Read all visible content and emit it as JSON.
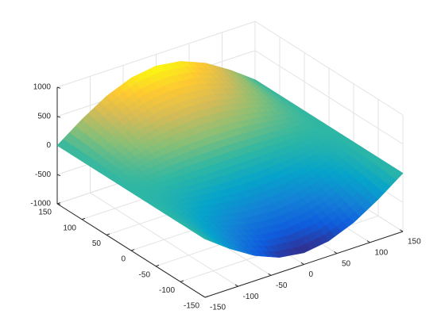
{
  "chart_data": {
    "type": "surface",
    "x": [
      -150,
      -112.5,
      -75,
      -37.5,
      0,
      37.5,
      75,
      112.5,
      150
    ],
    "y": [
      -150,
      -112.5,
      -75,
      -37.5,
      0,
      37.5,
      75,
      112.5,
      150
    ],
    "z": [
      [
        0,
        -306,
        -566,
        -739,
        -800,
        -739,
        -566,
        -306,
        0
      ],
      [
        0,
        -230,
        -424,
        -554,
        -600,
        -554,
        -424,
        -230,
        0
      ],
      [
        0,
        -153,
        -283,
        -370,
        -400,
        -370,
        -283,
        -153,
        0
      ],
      [
        0,
        -77,
        -141,
        -185,
        -200,
        -185,
        -141,
        -77,
        0
      ],
      [
        0,
        0,
        0,
        0,
        0,
        0,
        0,
        0,
        0
      ],
      [
        0,
        77,
        141,
        185,
        200,
        185,
        141,
        77,
        0
      ],
      [
        0,
        153,
        283,
        370,
        400,
        370,
        283,
        153,
        0
      ],
      [
        0,
        230,
        424,
        554,
        600,
        554,
        424,
        230,
        0
      ],
      [
        0,
        306,
        566,
        739,
        800,
        739,
        566,
        306,
        0
      ]
    ],
    "xlim": [
      -150,
      150
    ],
    "ylim": [
      -150,
      150
    ],
    "zlim": [
      -1000,
      1000
    ],
    "xticks": [
      -150,
      -100,
      -50,
      0,
      50,
      100,
      150
    ],
    "yticks": [
      -150,
      -100,
      -50,
      0,
      50,
      100,
      150
    ],
    "zticks": [
      -1000,
      -500,
      0,
      500,
      1000
    ],
    "grid": true,
    "colormap": [
      "#352a87",
      "#0f5cdd",
      "#1481d6",
      "#06a4ca",
      "#2eb7a4",
      "#87bf77",
      "#d1bb59",
      "#fec832",
      "#f9fb0e"
    ]
  }
}
